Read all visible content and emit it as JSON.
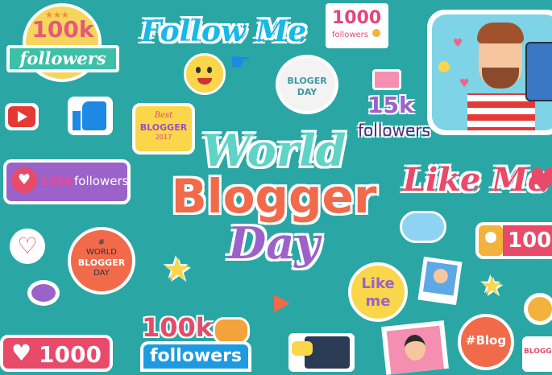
{
  "stickers": {
    "badge_100k": {
      "top": "100k",
      "ribbon": "followers"
    },
    "follow_me": "Follow Me",
    "counter_1000_top": {
      "value": "1000",
      "label": "followers"
    },
    "bloger_day": "BLOGER DAY",
    "best_blogger": {
      "line1": "Best",
      "line2": "BLOGGER",
      "line3": "2017"
    },
    "followers_15k": {
      "value": "15k",
      "label": "followers"
    },
    "banner_100k": {
      "value": "100k",
      "label": "followers"
    },
    "like_me_script": "Like Me",
    "counter_100_right": "100",
    "world_blogger_circle": {
      "hash": "#",
      "line1": "WORLD",
      "line2": "BLOGGER",
      "line3": "DAY"
    },
    "like_me_circle": {
      "line1": "Like",
      "line2": "me"
    },
    "followers_100k_bottom": {
      "value": "100k",
      "label": "followers"
    },
    "likes_1000_bottom": "1000",
    "hashtag_blog": "#Blog",
    "blogger_corner": "BLOGG"
  },
  "title": {
    "line1": "World",
    "line2": "Blogger",
    "line3": "Day"
  },
  "colors": {
    "background": "#2aa7a5",
    "coral": "#f16a4a",
    "purple": "#9b63c9",
    "mint": "#5fd3c6",
    "pink": "#e84a6a"
  }
}
